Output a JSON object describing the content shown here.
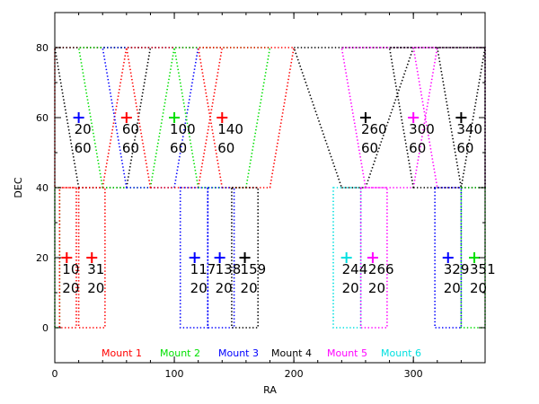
{
  "chart_data": {
    "type": "scatter",
    "title": "",
    "xlabel": "RA",
    "ylabel": "DEC",
    "xlim": [
      0,
      360
    ],
    "ylim": [
      -10,
      90
    ],
    "xticks": [
      "0",
      "100",
      "200",
      "300"
    ],
    "yticks": [
      "0",
      "20",
      "40",
      "60",
      "80"
    ],
    "grid": false,
    "legend_position": "bottom",
    "legend": [
      {
        "name": "Mount 1",
        "color": "#ff0000"
      },
      {
        "name": "Mount 2",
        "color": "#00e000"
      },
      {
        "name": "Mount 3",
        "color": "#0000ff"
      },
      {
        "name": "Mount 4",
        "color": "#000000"
      },
      {
        "name": "Mount 5",
        "color": "#ff00ff"
      },
      {
        "name": "Mount 6",
        "color": "#00e0e0"
      }
    ],
    "fields": [
      {
        "ra": 20,
        "dec": 60,
        "ra_label": "20",
        "dec_label": "60",
        "mount": 3
      },
      {
        "ra": 60,
        "dec": 60,
        "ra_label": "60",
        "dec_label": "60",
        "mount": 1
      },
      {
        "ra": 100,
        "dec": 60,
        "ra_label": "100",
        "dec_label": "60",
        "mount": 2
      },
      {
        "ra": 140,
        "dec": 60,
        "ra_label": "140",
        "dec_label": "60",
        "mount": 1
      },
      {
        "ra": 260,
        "dec": 60,
        "ra_label": "260",
        "dec_label": "60",
        "mount": 4
      },
      {
        "ra": 300,
        "dec": 60,
        "ra_label": "300",
        "dec_label": "60",
        "mount": 5
      },
      {
        "ra": 340,
        "dec": 60,
        "ra_label": "340",
        "dec_label": "60",
        "mount": 4
      },
      {
        "ra": 10,
        "dec": 20,
        "ra_label": "10",
        "dec_label": "20",
        "mount": 1
      },
      {
        "ra": 31,
        "dec": 20,
        "ra_label": "31",
        "dec_label": "20",
        "mount": 1
      },
      {
        "ra": 117,
        "dec": 20,
        "ra_label": "117",
        "dec_label": "20",
        "mount": 3
      },
      {
        "ra": 138,
        "dec": 20,
        "ra_label": "138",
        "dec_label": "20",
        "mount": 3
      },
      {
        "ra": 159,
        "dec": 20,
        "ra_label": "159",
        "dec_label": "20",
        "mount": 4
      },
      {
        "ra": 244,
        "dec": 20,
        "ra_label": "244",
        "dec_label": "20",
        "mount": 6
      },
      {
        "ra": 266,
        "dec": 20,
        "ra_label": "266",
        "dec_label": "20",
        "mount": 5
      },
      {
        "ra": 329,
        "dec": 20,
        "ra_label": "329",
        "dec_label": "20",
        "mount": 3
      },
      {
        "ra": 351,
        "dec": 20,
        "ra_label": "351",
        "dec_label": "20",
        "mount": 2
      }
    ],
    "coverage": [
      {
        "mount": 1,
        "ra_center": 20,
        "dec_bottom": 40,
        "dec_top": 80,
        "ra_bottom_half": 20,
        "ra_top_half": 40
      },
      {
        "mount": 4,
        "ra_center": 40,
        "dec_bottom": 40,
        "dec_top": 80,
        "ra_bottom_half": 20,
        "ra_top_half": 40
      },
      {
        "mount": 2,
        "ra_center": 60,
        "dec_bottom": 40,
        "dec_top": 80,
        "ra_bottom_half": 20,
        "ra_top_half": 40
      },
      {
        "mount": 3,
        "ra_center": 80,
        "dec_bottom": 40,
        "dec_top": 80,
        "ra_bottom_half": 20,
        "ra_top_half": 40
      },
      {
        "mount": 1,
        "ra_center": 100,
        "dec_bottom": 40,
        "dec_top": 80,
        "ra_bottom_half": 20,
        "ra_top_half": 40
      },
      {
        "mount": 2,
        "ra_center": 140,
        "dec_bottom": 40,
        "dec_top": 80,
        "ra_bottom_half": 20,
        "ra_top_half": 40
      },
      {
        "mount": 1,
        "ra_center": 160,
        "dec_bottom": 40,
        "dec_top": 80,
        "ra_bottom_half": 20,
        "ra_top_half": 40
      },
      {
        "mount": 4,
        "ra_center": 250,
        "dec_bottom": 40,
        "dec_top": 80,
        "ra_bottom_half": 10,
        "ra_top_half": 50
      },
      {
        "mount": 5,
        "ra_center": 280,
        "dec_bottom": 40,
        "dec_top": 80,
        "ra_bottom_half": 20,
        "ra_top_half": 40
      },
      {
        "mount": 5,
        "ra_center": 340,
        "dec_bottom": 40,
        "dec_top": 80,
        "ra_bottom_half": 20,
        "ra_top_half": 40
      },
      {
        "mount": 4,
        "ra_center": 320,
        "dec_bottom": 40,
        "dec_top": 80,
        "ra_bottom_half": 20,
        "ra_top_half": 40
      },
      {
        "mount": 4,
        "ra_center": 360,
        "dec_bottom": 40,
        "dec_top": 80,
        "ra_bottom_half": 20,
        "ra_top_half": 40
      }
    ],
    "strips": [
      {
        "mount": 2,
        "ra_min": 0,
        "ra_max": 4,
        "dec_min": 0,
        "dec_max": 40
      },
      {
        "mount": 1,
        "ra_min": 4,
        "ra_max": 18,
        "dec_min": 0,
        "dec_max": 40
      },
      {
        "mount": 1,
        "ra_min": 20,
        "ra_max": 42,
        "dec_min": 0,
        "dec_max": 40
      },
      {
        "mount": 3,
        "ra_min": 105,
        "ra_max": 128,
        "dec_min": 0,
        "dec_max": 40
      },
      {
        "mount": 3,
        "ra_min": 128,
        "ra_max": 150,
        "dec_min": 0,
        "dec_max": 40
      },
      {
        "mount": 4,
        "ra_min": 148,
        "ra_max": 170,
        "dec_min": 0,
        "dec_max": 40
      },
      {
        "mount": 6,
        "ra_min": 233,
        "ra_max": 256,
        "dec_min": 0,
        "dec_max": 40
      },
      {
        "mount": 5,
        "ra_min": 256,
        "ra_max": 278,
        "dec_min": 0,
        "dec_max": 40
      },
      {
        "mount": 3,
        "ra_min": 318,
        "ra_max": 340,
        "dec_min": 0,
        "dec_max": 40
      },
      {
        "mount": 2,
        "ra_min": 340,
        "ra_max": 360,
        "dec_min": 0,
        "dec_max": 40
      }
    ]
  }
}
